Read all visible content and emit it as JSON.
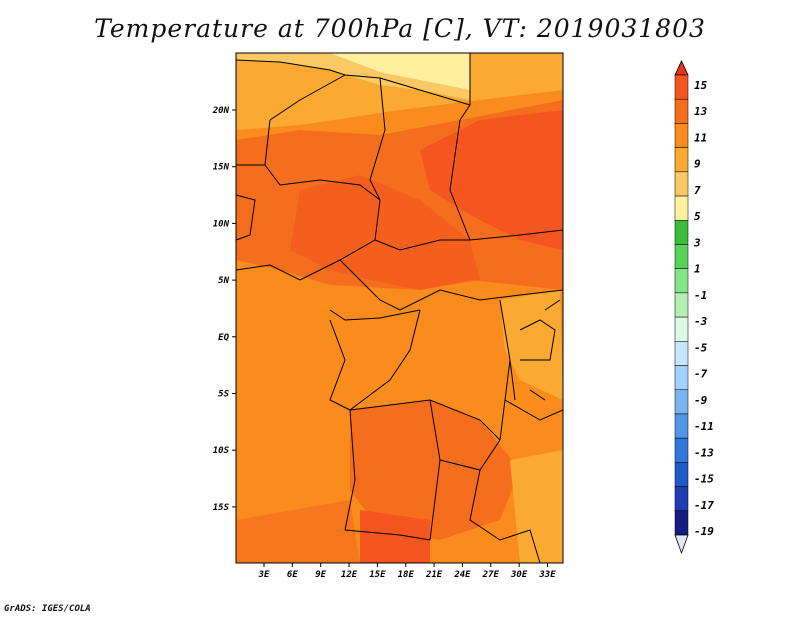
{
  "title": "Temperature at 700hPa [C], VT: 2019031803",
  "credit": "GrADS: IGES/COLA",
  "map": {
    "lon_ticks": [
      "3E",
      "6E",
      "9E",
      "12E",
      "15E",
      "18E",
      "21E",
      "24E",
      "27E",
      "30E",
      "33E"
    ],
    "lat_ticks": [
      "20N",
      "15N",
      "10N",
      "5N",
      "EQ",
      "5S",
      "10S",
      "15S"
    ]
  },
  "colorbar": {
    "labels": [
      "15",
      "13",
      "11",
      "9",
      "7",
      "5",
      "3",
      "1",
      "-1",
      "-3",
      "-5",
      "-7",
      "-9",
      "-11",
      "-13",
      "-15",
      "-17",
      "-19"
    ],
    "colors": [
      "#e8321e",
      "#f5551e",
      "#f56e1e",
      "#fa8c1e",
      "#faaa32",
      "#fac864",
      "#fff0a0",
      "#3cbe3c",
      "#5ad25a",
      "#82e682",
      "#b4f0b4",
      "#dcf8e6",
      "#c8e6fa",
      "#a0d2fa",
      "#78b4f0",
      "#5096e6",
      "#3278dc",
      "#1e5ac8",
      "#1e3cb4",
      "#141e82",
      "#e6e6fa"
    ]
  }
}
